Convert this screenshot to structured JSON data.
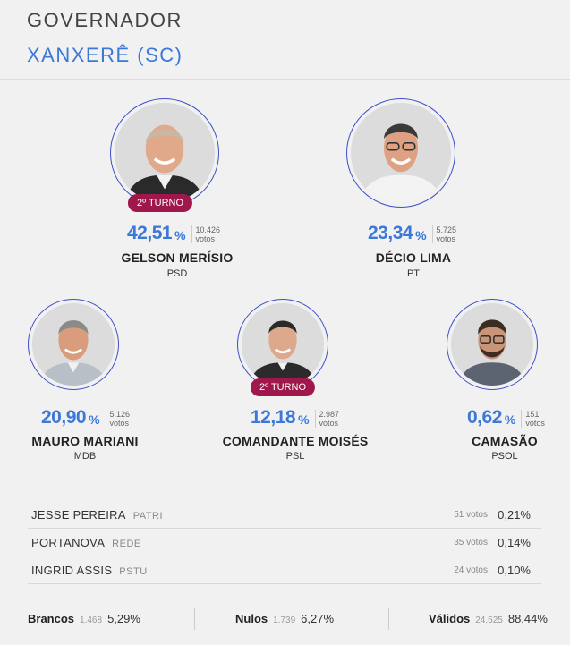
{
  "header": {
    "title": "GOVERNADOR",
    "subtitle": "XANXERÊ (SC)"
  },
  "candidates": [
    {
      "name": "GELSON MERÍSIO",
      "party": "PSD",
      "pct": "42,51",
      "votes": "10.426",
      "votes_label": "votos",
      "badge": "2º TURNO"
    },
    {
      "name": "DÉCIO LIMA",
      "party": "PT",
      "pct": "23,34",
      "votes": "5.725",
      "votes_label": "votos"
    },
    {
      "name": "MAURO MARIANI",
      "party": "MDB",
      "pct": "20,90",
      "votes": "5.126",
      "votes_label": "votos"
    },
    {
      "name": "COMANDANTE MOISÉS",
      "party": "PSL",
      "pct": "12,18",
      "votes": "2.987",
      "votes_label": "votos",
      "badge": "2º TURNO"
    },
    {
      "name": "CAMASÃO",
      "party": "PSOL",
      "pct": "0,62",
      "votes": "151",
      "votes_label": "votos"
    }
  ],
  "pct_sign": "%",
  "others": [
    {
      "name": "JESSE PEREIRA",
      "party": "PATRI",
      "votes": "51 votos",
      "pct": "0,21%"
    },
    {
      "name": "PORTANOVA",
      "party": "REDE",
      "votes": "35 votos",
      "pct": "0,14%"
    },
    {
      "name": "INGRID ASSIS",
      "party": "PSTU",
      "votes": "24 votos",
      "pct": "0,10%"
    }
  ],
  "totals": {
    "brancos": {
      "label": "Brancos",
      "votes": "1.468",
      "pct": "5,29%"
    },
    "nulos": {
      "label": "Nulos",
      "votes": "1.739",
      "pct": "6,27%"
    },
    "validos": {
      "label": "Válidos",
      "votes": "24.525",
      "pct": "88,44%"
    }
  },
  "colors": {
    "accent": "#3b78d8",
    "badge": "#a0174b",
    "ring": "#3f4fc7"
  },
  "icons": [
    "candidate-photo"
  ]
}
